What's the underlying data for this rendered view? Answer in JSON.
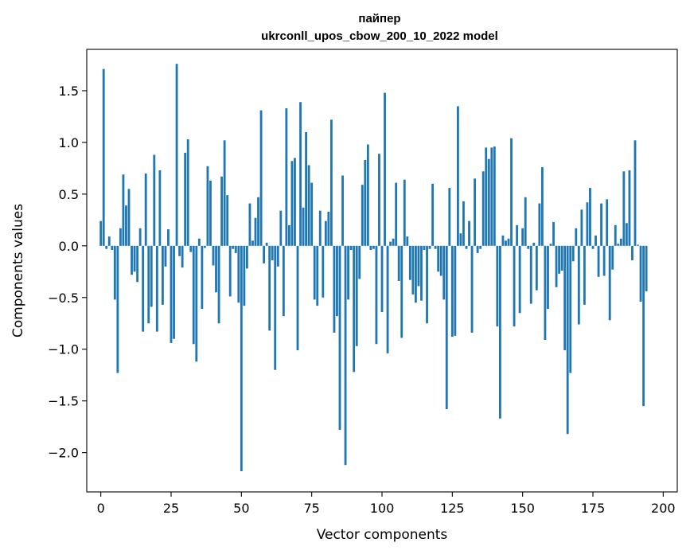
{
  "chart_data": {
    "type": "bar",
    "title": "пайпер",
    "subtitle": "ukrconll_upos_cbow_200_10_2022 model",
    "xlabel": "Vector components",
    "ylabel": "Components values",
    "xlim": [
      -5,
      205
    ],
    "ylim": [
      -2.38,
      1.9
    ],
    "xticks": [
      0,
      25,
      50,
      75,
      100,
      125,
      150,
      175,
      200
    ],
    "yticks": [
      -2.0,
      -1.5,
      -1.0,
      -0.5,
      0.0,
      0.5,
      1.0,
      1.5
    ],
    "ytick_labels": [
      "−2.0",
      "−1.5",
      "−1.0",
      "−0.5",
      "0.0",
      "0.5",
      "1.0",
      "1.5"
    ],
    "grid": false,
    "bar_color": "#1f77b4",
    "series": [
      {
        "values": [
          0.24,
          1.71,
          -0.03,
          0.09,
          -0.04,
          -0.52,
          -1.23,
          0.17,
          0.69,
          0.39,
          0.55,
          -0.28,
          -0.25,
          -0.35,
          0.17,
          -0.83,
          0.7,
          -0.75,
          -0.59,
          0.88,
          -0.83,
          0.73,
          -0.57,
          -0.2,
          0.16,
          -0.94,
          -0.9,
          1.76,
          -0.1,
          -0.21,
          0.9,
          1.03,
          -0.06,
          -0.95,
          -1.12,
          0.07,
          -0.61,
          -0.02,
          0.77,
          0.63,
          -0.19,
          -0.45,
          -0.75,
          0.67,
          1.02,
          0.49,
          -0.49,
          -0.03,
          -0.07,
          -0.55,
          -2.18,
          -0.58,
          -0.22,
          0.41,
          0.05,
          0.27,
          0.47,
          1.31,
          -0.17,
          0.03,
          -0.82,
          -0.14,
          -1.2,
          -0.2,
          0.34,
          -0.68,
          1.33,
          0.2,
          0.82,
          0.85,
          -1.01,
          1.39,
          0.37,
          1.1,
          0.78,
          0.61,
          -0.52,
          -0.58,
          0.34,
          -0.5,
          0.24,
          0.33,
          1.22,
          -0.84,
          -0.68,
          -1.78,
          0.68,
          -2.12,
          -0.52,
          -0.04,
          -1.22,
          -0.97,
          -0.32,
          0.59,
          0.83,
          0.98,
          -0.04,
          -0.03,
          -0.95,
          0.89,
          -0.64,
          1.48,
          -1.04,
          0.04,
          0.07,
          0.61,
          -0.34,
          -0.89,
          0.64,
          0.09,
          -0.33,
          -0.47,
          -0.55,
          -0.39,
          -0.53,
          -0.04,
          -0.75,
          -0.03,
          0.6,
          -0.03,
          -0.25,
          -0.29,
          -0.52,
          -1.58,
          0.56,
          -0.88,
          -0.87,
          1.35,
          0.12,
          0.43,
          -0.03,
          0.24,
          -0.84,
          0.65,
          -0.07,
          -0.03,
          0.72,
          0.95,
          0.84,
          0.95,
          0.96,
          -0.78,
          -1.67,
          0.1,
          0.05,
          0.07,
          1.04,
          -0.78,
          0.2,
          -0.65,
          0.17,
          0.47,
          -0.03,
          -0.56,
          0.03,
          -0.43,
          0.41,
          0.76,
          -0.91,
          -0.61,
          0.02,
          0.23,
          -0.4,
          -0.27,
          -0.24,
          -1.01,
          -1.82,
          -1.23,
          -0.15,
          0.17,
          -0.76,
          0.35,
          -0.57,
          0.42,
          0.56,
          -0.03,
          0.1,
          -0.3,
          0.41,
          -0.29,
          0.45,
          -0.72,
          -0.23,
          0.2,
          0.02,
          0.07,
          0.72,
          0.22,
          0.73,
          -0.14,
          1.02,
          0.01,
          -0.54,
          -1.55,
          -0.44
        ]
      }
    ]
  }
}
